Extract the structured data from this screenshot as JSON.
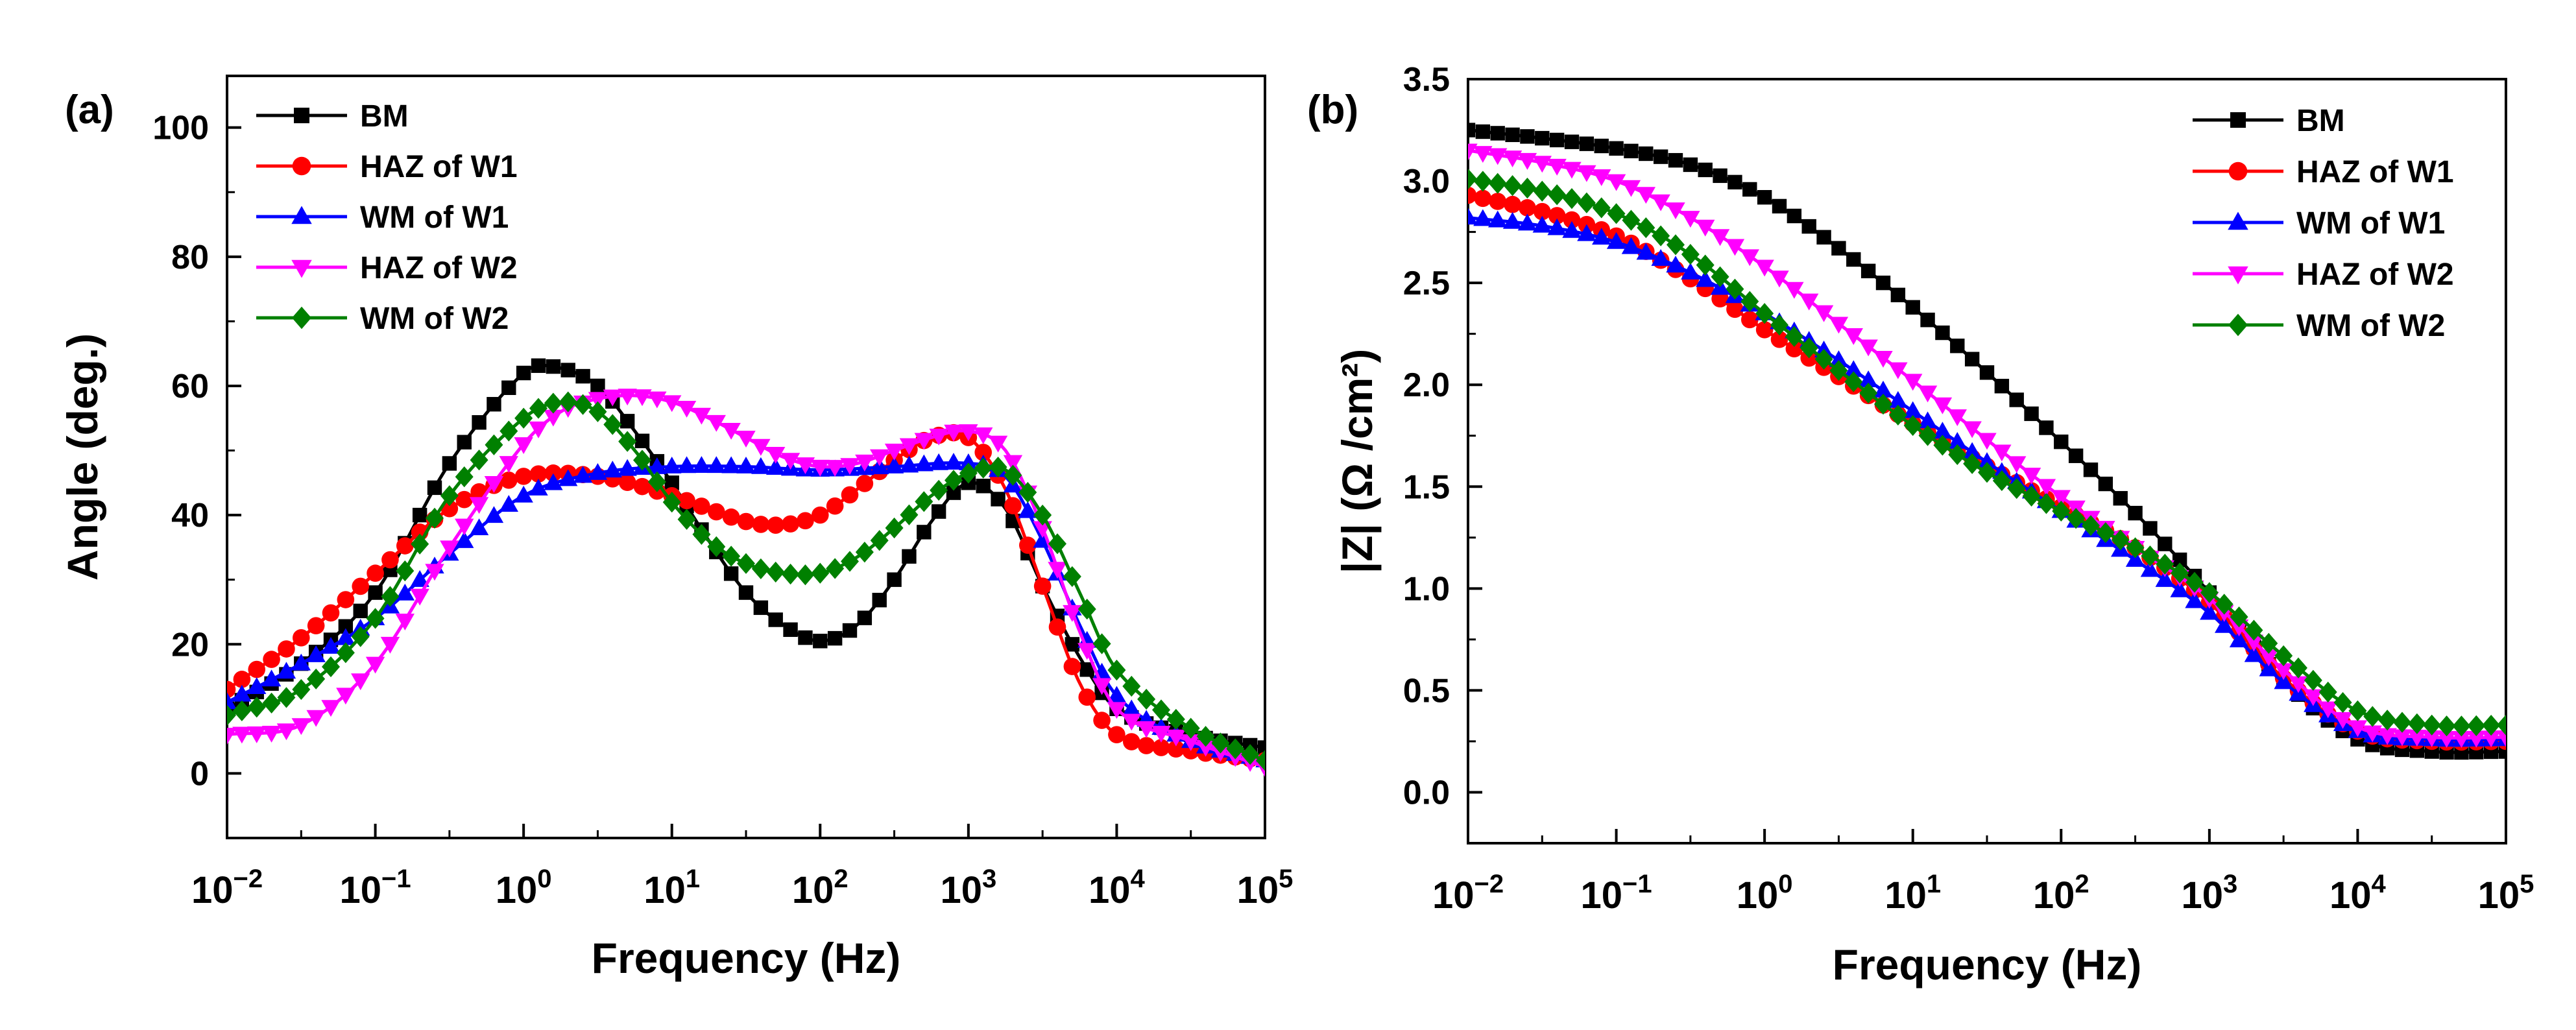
{
  "figure": {
    "description_labels": [
      "(a)",
      "(b)"
    ]
  },
  "colors": {
    "BM": "#000000",
    "HAZ of W1": "#ff0000",
    "WM of W1": "#0000ff",
    "HAZ of W2": "#ff00ff",
    "WM of W2": "#008000"
  },
  "chart_data": [
    {
      "type": "scatter",
      "panel_label": "(a)",
      "title": "",
      "xlabel": "Frequency (Hz)",
      "ylabel": "Angle (deg.)",
      "xscale": "log",
      "xlim_log10": [
        -2,
        5
      ],
      "ylim": [
        -10,
        108
      ],
      "xticks": [
        {
          "base": "10",
          "exp": "−2",
          "value": -2
        },
        {
          "base": "10",
          "exp": "−1",
          "value": -1
        },
        {
          "base": "10",
          "exp": "0",
          "value": 0
        },
        {
          "base": "10",
          "exp": "1",
          "value": 1
        },
        {
          "base": "10",
          "exp": "2",
          "value": 2
        },
        {
          "base": "10",
          "exp": "3",
          "value": 3
        },
        {
          "base": "10",
          "exp": "4",
          "value": 4
        },
        {
          "base": "10",
          "exp": "5",
          "value": 5
        }
      ],
      "yticks": [
        {
          "label": "0",
          "value": 0
        },
        {
          "label": "20",
          "value": 20
        },
        {
          "label": "40",
          "value": 40
        },
        {
          "label": "60",
          "value": 60
        },
        {
          "label": "80",
          "value": 80
        },
        {
          "label": "100",
          "value": 100
        }
      ],
      "legend_position": "top-left",
      "series": [
        {
          "name": "BM",
          "marker": "square",
          "color": "#000000",
          "points": [
            [
              -2,
              10
            ],
            [
              -1.5,
              17
            ],
            [
              -1,
              28
            ],
            [
              -0.5,
              48
            ],
            [
              0,
              62
            ],
            [
              0.2,
              63
            ],
            [
              0.5,
              60
            ],
            [
              0.75,
              53
            ],
            [
              1,
              45
            ],
            [
              1.25,
              36
            ],
            [
              1.5,
              28
            ],
            [
              1.75,
              23
            ],
            [
              2,
              20.5
            ],
            [
              2.25,
              23
            ],
            [
              2.5,
              30
            ],
            [
              2.75,
              39
            ],
            [
              3,
              45
            ],
            [
              3.25,
              41
            ],
            [
              3.5,
              29
            ],
            [
              3.75,
              18
            ],
            [
              4,
              10
            ],
            [
              4.5,
              6
            ],
            [
              5,
              4
            ]
          ]
        },
        {
          "name": "HAZ of W1",
          "marker": "circle",
          "color": "#ff0000",
          "points": [
            [
              -2,
              13
            ],
            [
              -1.5,
              21
            ],
            [
              -1,
              31
            ],
            [
              -0.5,
              41
            ],
            [
              0,
              46
            ],
            [
              0.5,
              46
            ],
            [
              1,
              43
            ],
            [
              1.5,
              39
            ],
            [
              1.75,
              38.5
            ],
            [
              2,
              40
            ],
            [
              2.25,
              44
            ],
            [
              2.5,
              48.5
            ],
            [
              2.75,
              52
            ],
            [
              3,
              52
            ],
            [
              3.25,
              44
            ],
            [
              3.5,
              29
            ],
            [
              3.75,
              14
            ],
            [
              4,
              6
            ],
            [
              4.5,
              3.5
            ],
            [
              5,
              2
            ]
          ]
        },
        {
          "name": "WM of W1",
          "marker": "triangle-up",
          "color": "#0000ff",
          "points": [
            [
              -2,
              11
            ],
            [
              -1.5,
              17
            ],
            [
              -1,
              24
            ],
            [
              -0.5,
              34
            ],
            [
              0,
              43
            ],
            [
              0.5,
              46.5
            ],
            [
              1,
              47.5
            ],
            [
              1.5,
              47.5
            ],
            [
              2,
              47
            ],
            [
              2.5,
              47.5
            ],
            [
              3,
              48
            ],
            [
              3.25,
              46
            ],
            [
              3.5,
              36
            ],
            [
              3.75,
              23
            ],
            [
              4,
              12
            ],
            [
              4.5,
              5
            ],
            [
              5,
              2
            ]
          ]
        },
        {
          "name": "HAZ of W2",
          "marker": "triangle-down",
          "color": "#ff00ff",
          "points": [
            [
              -2,
              6
            ],
            [
              -1.5,
              7.5
            ],
            [
              -1,
              17
            ],
            [
              -0.5,
              35
            ],
            [
              0,
              51
            ],
            [
              0.25,
              56
            ],
            [
              0.5,
              58
            ],
            [
              0.75,
              58.5
            ],
            [
              1,
              57.5
            ],
            [
              1.25,
              55
            ],
            [
              1.5,
              52
            ],
            [
              1.75,
              49
            ],
            [
              2,
              47.5
            ],
            [
              2.25,
              48
            ],
            [
              2.5,
              50
            ],
            [
              2.75,
              52
            ],
            [
              3,
              53
            ],
            [
              3.25,
              50
            ],
            [
              3.5,
              38
            ],
            [
              3.75,
              22
            ],
            [
              4,
              10
            ],
            [
              4.5,
              5
            ],
            [
              5,
              1
            ]
          ]
        },
        {
          "name": "WM of W2",
          "marker": "diamond",
          "color": "#008000",
          "points": [
            [
              -2,
              9
            ],
            [
              -1.5,
              13
            ],
            [
              -1,
              24
            ],
            [
              -0.5,
              43
            ],
            [
              0,
              55
            ],
            [
              0.25,
              57.5
            ],
            [
              0.5,
              56
            ],
            [
              0.75,
              50
            ],
            [
              1,
              42
            ],
            [
              1.25,
              36
            ],
            [
              1.5,
              32.5
            ],
            [
              1.75,
              31
            ],
            [
              2,
              31
            ],
            [
              2.25,
              33.5
            ],
            [
              2.5,
              38
            ],
            [
              2.75,
              43
            ],
            [
              3,
              46.5
            ],
            [
              3.25,
              47
            ],
            [
              3.5,
              40
            ],
            [
              3.75,
              28
            ],
            [
              4,
              16
            ],
            [
              4.5,
              7
            ],
            [
              5,
              2
            ]
          ]
        }
      ]
    },
    {
      "type": "scatter",
      "panel_label": "(b)",
      "title": "",
      "xlabel": "Frequency (Hz)",
      "ylabel": "|Z| (Ω /cm²)",
      "xscale": "log",
      "xlim_log10": [
        -2,
        5
      ],
      "ylim": [
        -0.25,
        3.5
      ],
      "xticks": [
        {
          "base": "10",
          "exp": "−2",
          "value": -2
        },
        {
          "base": "10",
          "exp": "−1",
          "value": -1
        },
        {
          "base": "10",
          "exp": "0",
          "value": 0
        },
        {
          "base": "10",
          "exp": "1",
          "value": 1
        },
        {
          "base": "10",
          "exp": "2",
          "value": 2
        },
        {
          "base": "10",
          "exp": "3",
          "value": 3
        },
        {
          "base": "10",
          "exp": "4",
          "value": 4
        },
        {
          "base": "10",
          "exp": "5",
          "value": 5
        }
      ],
      "yticks": [
        {
          "label": "0.0",
          "value": 0
        },
        {
          "label": "0.5",
          "value": 0.5
        },
        {
          "label": "1.0",
          "value": 1.0
        },
        {
          "label": "1.5",
          "value": 1.5
        },
        {
          "label": "2.0",
          "value": 2.0
        },
        {
          "label": "2.5",
          "value": 2.5
        },
        {
          "label": "3.0",
          "value": 3.0
        },
        {
          "label": "3.5",
          "value": 3.5
        }
      ],
      "legend_position": "top-right",
      "series": [
        {
          "name": "BM",
          "marker": "square",
          "color": "#000000",
          "points": [
            [
              -2,
              3.25
            ],
            [
              -1.5,
              3.21
            ],
            [
              -1,
              3.16
            ],
            [
              -0.5,
              3.08
            ],
            [
              0,
              2.92
            ],
            [
              0.5,
              2.67
            ],
            [
              1,
              2.38
            ],
            [
              1.5,
              2.06
            ],
            [
              2,
              1.72
            ],
            [
              2.5,
              1.37
            ],
            [
              3,
              0.98
            ],
            [
              3.5,
              0.55
            ],
            [
              4,
              0.26
            ],
            [
              4.5,
              0.2
            ],
            [
              5,
              0.2
            ]
          ]
        },
        {
          "name": "HAZ of W1",
          "marker": "circle",
          "color": "#ff0000",
          "points": [
            [
              -2,
              2.93
            ],
            [
              -1.5,
              2.85
            ],
            [
              -1,
              2.73
            ],
            [
              -0.5,
              2.52
            ],
            [
              0,
              2.27
            ],
            [
              0.5,
              2.04
            ],
            [
              1,
              1.81
            ],
            [
              1.5,
              1.6
            ],
            [
              2,
              1.4
            ],
            [
              2.5,
              1.2
            ],
            [
              3,
              0.93
            ],
            [
              3.5,
              0.56
            ],
            [
              4,
              0.3
            ],
            [
              4.5,
              0.25
            ],
            [
              5,
              0.25
            ]
          ]
        },
        {
          "name": "WM of W1",
          "marker": "triangle-up",
          "color": "#0000ff",
          "points": [
            [
              -2,
              2.82
            ],
            [
              -1.5,
              2.78
            ],
            [
              -1,
              2.7
            ],
            [
              -0.5,
              2.55
            ],
            [
              0,
              2.35
            ],
            [
              0.5,
              2.12
            ],
            [
              1,
              1.87
            ],
            [
              1.5,
              1.62
            ],
            [
              2,
              1.38
            ],
            [
              2.5,
              1.14
            ],
            [
              3,
              0.88
            ],
            [
              3.5,
              0.54
            ],
            [
              4,
              0.3
            ],
            [
              4.5,
              0.26
            ],
            [
              5,
              0.26
            ]
          ]
        },
        {
          "name": "HAZ of W2",
          "marker": "triangle-down",
          "color": "#ff00ff",
          "points": [
            [
              -2,
              3.15
            ],
            [
              -1.5,
              3.09
            ],
            [
              -1,
              3.0
            ],
            [
              -0.5,
              2.82
            ],
            [
              0,
              2.58
            ],
            [
              0.5,
              2.3
            ],
            [
              1,
              2.02
            ],
            [
              1.5,
              1.73
            ],
            [
              2,
              1.45
            ],
            [
              2.5,
              1.2
            ],
            [
              3,
              0.95
            ],
            [
              3.5,
              0.6
            ],
            [
              4,
              0.32
            ],
            [
              4.5,
              0.27
            ],
            [
              5,
              0.27
            ]
          ]
        },
        {
          "name": "WM of W2",
          "marker": "diamond",
          "color": "#008000",
          "points": [
            [
              -2,
              3.01
            ],
            [
              -1.5,
              2.95
            ],
            [
              -1,
              2.84
            ],
            [
              -0.5,
              2.64
            ],
            [
              0,
              2.35
            ],
            [
              0.5,
              2.07
            ],
            [
              1,
              1.8
            ],
            [
              1.5,
              1.57
            ],
            [
              2,
              1.38
            ],
            [
              2.5,
              1.2
            ],
            [
              3,
              0.98
            ],
            [
              3.5,
              0.67
            ],
            [
              4,
              0.4
            ],
            [
              4.5,
              0.33
            ],
            [
              5,
              0.33
            ]
          ]
        }
      ]
    }
  ]
}
